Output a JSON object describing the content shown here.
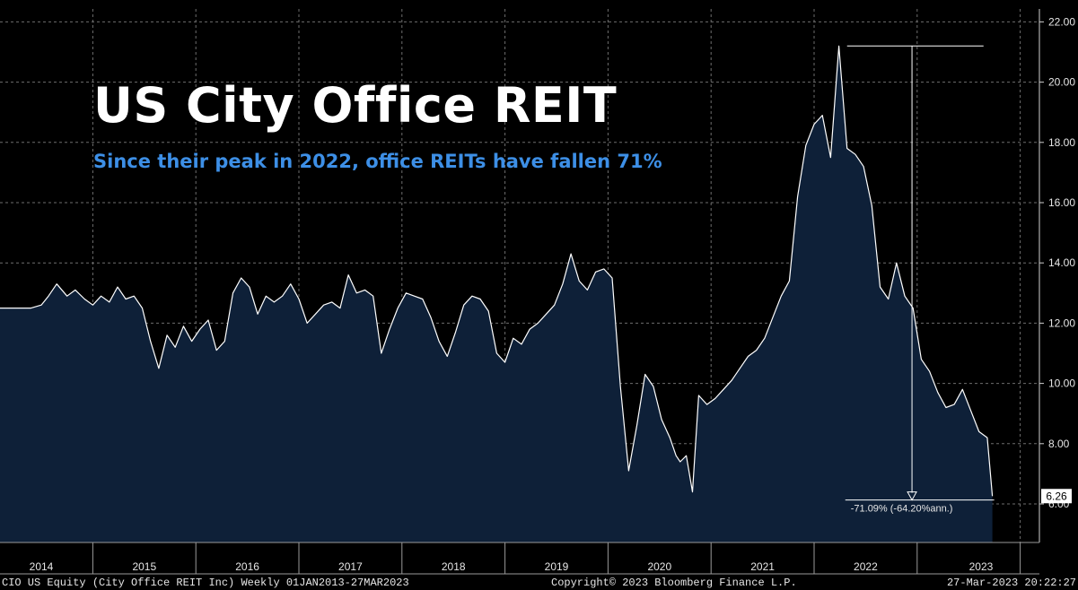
{
  "header": {
    "title": "US City Office REIT",
    "subtitle": "Since their peak in 2022, office REITs have fallen 71%"
  },
  "footer": {
    "left": "CIO US Equity (City Office REIT Inc)  Weekly 01JAN2013-27MAR2023",
    "center": "Copyright© 2023 Bloomberg Finance L.P.",
    "right": "27-Mar-2023 20:22:27"
  },
  "colors": {
    "background": "#000000",
    "area_fill": "#0e2038",
    "line": "#ffffff",
    "grid": "#6e6e6e",
    "subtitle": "#3d8fe6"
  },
  "chart_data": {
    "type": "area",
    "x_start": "2013-10",
    "x_end": "2023-03-27",
    "x_tick_labels": [
      "2014",
      "2015",
      "2016",
      "2017",
      "2018",
      "2019",
      "2020",
      "2021",
      "2022",
      "2023"
    ],
    "y_tick_labels": [
      "6.00",
      "8.00",
      "10.00",
      "12.00",
      "14.00",
      "16.00",
      "18.00",
      "20.00",
      "22.00"
    ],
    "ylim": [
      4.8,
      22.4
    ],
    "grid": true,
    "series": [
      {
        "x": [
          2013.8,
          2013.9,
          2014.0,
          2014.07,
          2014.15,
          2014.25,
          2014.33,
          2014.42,
          2014.5,
          2014.58,
          2014.66,
          2014.74,
          2014.82,
          2014.9,
          2014.98,
          2015.06,
          2015.14,
          2015.22,
          2015.3,
          2015.38,
          2015.46,
          2015.54,
          2015.62,
          2015.7,
          2015.78,
          2015.86,
          2015.94,
          2016.02,
          2016.1,
          2016.18,
          2016.26,
          2016.34,
          2016.42,
          2016.5,
          2016.58,
          2016.66,
          2016.74,
          2016.82,
          2016.9,
          2016.98,
          2017.06,
          2017.14,
          2017.22,
          2017.3,
          2017.38,
          2017.46,
          2017.54,
          2017.62,
          2017.7,
          2017.78,
          2017.86,
          2017.94,
          2018.02,
          2018.1,
          2018.18,
          2018.26,
          2018.34,
          2018.42,
          2018.5,
          2018.58,
          2018.66,
          2018.74,
          2018.82,
          2018.9,
          2018.98,
          2019.06,
          2019.14,
          2019.22,
          2019.3,
          2019.38,
          2019.46,
          2019.54,
          2019.62,
          2019.7,
          2019.78,
          2019.86,
          2019.94,
          2020.02,
          2020.1,
          2020.16,
          2020.2,
          2020.26,
          2020.32,
          2020.38,
          2020.46,
          2020.54,
          2020.62,
          2020.7,
          2020.78,
          2020.86,
          2020.94,
          2021.02,
          2021.1,
          2021.18,
          2021.26,
          2021.34,
          2021.42,
          2021.5,
          2021.58,
          2021.66,
          2021.74,
          2021.82,
          2021.9,
          2021.98,
          2022.06,
          2022.14,
          2022.22,
          2022.3,
          2022.38,
          2022.46,
          2022.54,
          2022.62,
          2022.7,
          2022.78,
          2022.86,
          2022.94,
          2023.02,
          2023.1,
          2023.18,
          2023.23
        ],
        "y": [
          12.5,
          12.5,
          12.6,
          12.9,
          13.3,
          12.9,
          13.1,
          12.8,
          12.6,
          12.9,
          12.7,
          13.2,
          12.8,
          12.9,
          12.5,
          11.4,
          10.5,
          11.6,
          11.2,
          11.9,
          11.4,
          11.8,
          12.1,
          11.1,
          11.4,
          13.0,
          13.5,
          13.2,
          12.3,
          12.9,
          12.7,
          12.9,
          13.3,
          12.8,
          12.0,
          12.3,
          12.6,
          12.7,
          12.5,
          13.6,
          13.0,
          13.1,
          12.9,
          11.0,
          11.8,
          12.5,
          13.0,
          12.9,
          12.8,
          12.2,
          11.4,
          10.9,
          11.7,
          12.6,
          12.9,
          12.8,
          12.4,
          11.0,
          10.7,
          11.5,
          11.3,
          11.8,
          12.0,
          12.3,
          12.6,
          13.3,
          14.3,
          13.4,
          13.1,
          13.7,
          13.8,
          13.5,
          9.9,
          7.1,
          8.6,
          10.3,
          9.9,
          8.8,
          8.2,
          7.6,
          7.4,
          7.6,
          6.4,
          9.6,
          9.3,
          9.5,
          9.8,
          10.1,
          10.5,
          10.9,
          11.1,
          11.5,
          12.2,
          12.9,
          13.4,
          16.2,
          17.9,
          18.6,
          18.9,
          17.5,
          21.2,
          17.8,
          17.6,
          17.2,
          15.9,
          13.2,
          12.8,
          14.0,
          12.9,
          12.5,
          10.8,
          10.4,
          9.7,
          9.2,
          9.3,
          9.8,
          9.1,
          8.4,
          8.2,
          6.26
        ]
      }
    ],
    "last_value_label": "6.26",
    "annotation": {
      "text": "-71.09% (-64.20%ann.)",
      "from_x": 2021.82,
      "from_y": 21.2,
      "to_x": 2023.23,
      "to_y": 6.13
    }
  }
}
